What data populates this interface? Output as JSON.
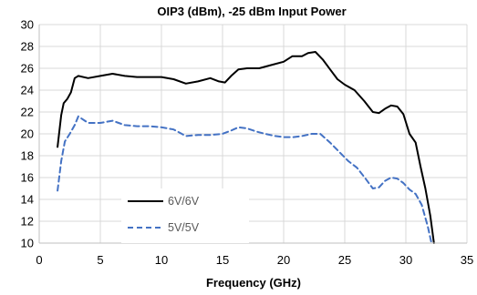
{
  "chart_data": {
    "type": "line",
    "title": "OIP3 (dBm), -25 dBm Input Power",
    "xlabel": "Frequency (GHz)",
    "ylabel": "",
    "xlim": [
      0,
      35
    ],
    "ylim": [
      10,
      30
    ],
    "xticks": [
      0,
      5,
      10,
      15,
      20,
      25,
      30,
      35
    ],
    "yticks": [
      10,
      12,
      14,
      16,
      18,
      20,
      22,
      24,
      26,
      28,
      30
    ],
    "grid": true,
    "legend_position": "bottom-left",
    "series": [
      {
        "name": "6V/6V",
        "color": "#000000",
        "style": "solid",
        "x": [
          1.5,
          1.8,
          2.0,
          2.3,
          2.6,
          2.9,
          3.2,
          4.0,
          5.0,
          6.0,
          7.0,
          8.0,
          9.0,
          10.0,
          11.0,
          12.0,
          13.0,
          14.0,
          14.7,
          15.2,
          15.7,
          16.3,
          17.0,
          18.0,
          19.0,
          20.0,
          20.7,
          21.5,
          22.0,
          22.6,
          23.2,
          23.8,
          24.4,
          25.0,
          25.8,
          26.6,
          27.3,
          27.8,
          28.3,
          28.8,
          29.3,
          29.8,
          30.3,
          30.8,
          31.2,
          31.6,
          32.0,
          32.3
        ],
        "y": [
          18.8,
          21.7,
          22.8,
          23.2,
          23.8,
          25.1,
          25.3,
          25.1,
          25.3,
          25.5,
          25.3,
          25.2,
          25.2,
          25.2,
          25.0,
          24.6,
          24.8,
          25.1,
          24.8,
          24.7,
          25.3,
          25.9,
          26.0,
          26.0,
          26.3,
          26.6,
          27.1,
          27.1,
          27.4,
          27.5,
          26.8,
          25.9,
          25.0,
          24.5,
          24.0,
          23.0,
          22.0,
          21.9,
          22.3,
          22.6,
          22.5,
          21.8,
          20.0,
          19.2,
          17.0,
          15.0,
          12.5,
          10.0
        ]
      },
      {
        "name": "5V/5V",
        "color": "#4472C4",
        "style": "dashed",
        "x": [
          1.5,
          1.8,
          2.1,
          2.5,
          2.9,
          3.2,
          4.0,
          5.0,
          6.0,
          7.0,
          8.0,
          9.0,
          10.0,
          11.0,
          12.0,
          13.0,
          14.0,
          15.0,
          15.7,
          16.3,
          17.0,
          17.8,
          18.5,
          19.3,
          20.0,
          20.8,
          21.5,
          22.3,
          23.0,
          23.8,
          24.5,
          25.3,
          26.0,
          26.7,
          27.3,
          27.8,
          28.3,
          28.8,
          29.3,
          29.8,
          30.3,
          30.8,
          31.3,
          31.8,
          32.1
        ],
        "y": [
          14.8,
          17.5,
          19.3,
          20.0,
          20.8,
          21.6,
          21.0,
          21.0,
          21.2,
          20.8,
          20.7,
          20.7,
          20.6,
          20.4,
          19.8,
          19.9,
          19.9,
          20.0,
          20.3,
          20.6,
          20.5,
          20.2,
          20.0,
          19.8,
          19.7,
          19.7,
          19.8,
          20.0,
          20.0,
          19.2,
          18.4,
          17.5,
          16.9,
          15.9,
          15.0,
          15.1,
          15.7,
          16.0,
          15.9,
          15.5,
          14.9,
          14.5,
          13.5,
          11.5,
          10.0
        ]
      }
    ]
  }
}
